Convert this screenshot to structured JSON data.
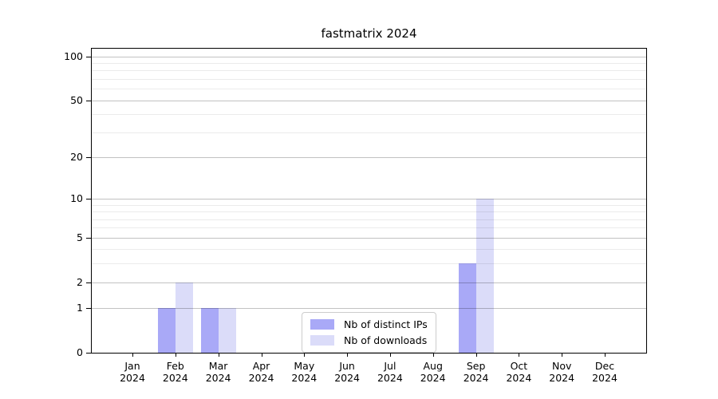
{
  "title": "fastmatrix 2024",
  "chart_data": {
    "type": "bar",
    "title": "fastmatrix 2024",
    "categories": [
      "Jan 2024",
      "Feb 2024",
      "Mar 2024",
      "Apr 2024",
      "May 2024",
      "Jun 2024",
      "Jul 2024",
      "Aug 2024",
      "Sep 2024",
      "Oct 2024",
      "Nov 2024",
      "Dec 2024"
    ],
    "series": [
      {
        "name": "Nb of distinct IPs",
        "color": "#a9a9f7",
        "values": [
          0,
          1,
          1,
          0,
          0,
          0,
          0,
          0,
          3,
          0,
          0,
          0
        ]
      },
      {
        "name": "Nb of downloads",
        "color": "#dbdcf9",
        "values": [
          0,
          2,
          1,
          0,
          0,
          0,
          0,
          0,
          10,
          0,
          0,
          0
        ]
      }
    ],
    "xlabel": "",
    "ylabel": "",
    "yscale": "log1p",
    "ylim": [
      0,
      115
    ],
    "y_major_ticks": [
      0,
      1,
      2,
      5,
      10,
      20,
      50,
      100
    ],
    "y_minor_gridlines": [
      3,
      4,
      6,
      7,
      8,
      9,
      30,
      40,
      60,
      70,
      80,
      90
    ],
    "grid": true,
    "legend_position": "lower center"
  }
}
